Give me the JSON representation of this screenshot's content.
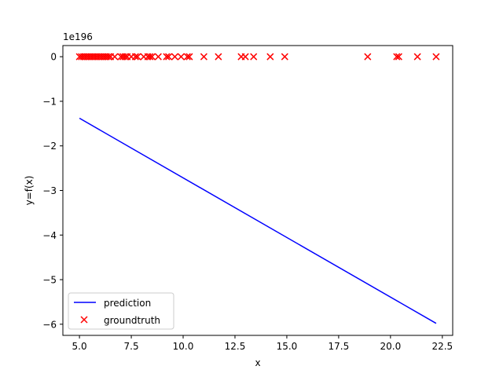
{
  "chart_data": {
    "type": "scatter",
    "title": "",
    "xlabel": "x",
    "ylabel": "y=f(x)",
    "offset_text": "1e196",
    "xlim": [
      4.2,
      23.0
    ],
    "ylim": [
      -6.25,
      0.25
    ],
    "xticks": [
      5.0,
      7.5,
      10.0,
      12.5,
      15.0,
      17.5,
      20.0,
      22.5
    ],
    "xtick_labels": [
      "5.0",
      "7.5",
      "10.0",
      "12.5",
      "15.0",
      "17.5",
      "20.0",
      "22.5"
    ],
    "yticks": [
      0,
      -1,
      -2,
      -3,
      -4,
      -5,
      -6
    ],
    "ytick_labels": [
      "0",
      "−1",
      "−2",
      "−3",
      "−4",
      "−5",
      "−6"
    ],
    "grid": false,
    "legend": "lower-left",
    "series": [
      {
        "name": "prediction",
        "kind": "line",
        "color": "#0000ff",
        "x": [
          5.0,
          22.2
        ],
        "y": [
          -1.38,
          -5.98
        ]
      },
      {
        "name": "groundtruth",
        "kind": "scatter",
        "marker": "x",
        "color": "#ff0000",
        "x": [
          5.0,
          5.1,
          5.2,
          5.3,
          5.4,
          5.5,
          5.6,
          5.7,
          5.8,
          5.9,
          6.0,
          6.1,
          6.2,
          6.3,
          6.4,
          6.5,
          6.7,
          7.0,
          7.1,
          7.2,
          7.3,
          7.5,
          7.7,
          7.8,
          8.1,
          8.3,
          8.4,
          8.5,
          8.8,
          9.2,
          9.3,
          9.6,
          9.9,
          10.2,
          10.3,
          11.0,
          11.7,
          12.8,
          13.0,
          13.4,
          14.2,
          14.9,
          18.9,
          20.3,
          20.4,
          21.3,
          22.2
        ],
        "y": [
          0,
          0,
          0,
          0,
          0,
          0,
          0,
          0,
          0,
          0,
          0,
          0,
          0,
          0,
          0,
          0,
          0,
          0,
          0,
          0,
          0,
          0,
          0,
          0,
          0,
          0,
          0,
          0,
          0,
          0,
          0,
          0,
          0,
          0,
          0,
          0,
          0,
          0,
          0,
          0,
          0,
          0,
          0,
          0,
          0,
          0,
          0
        ]
      }
    ]
  }
}
